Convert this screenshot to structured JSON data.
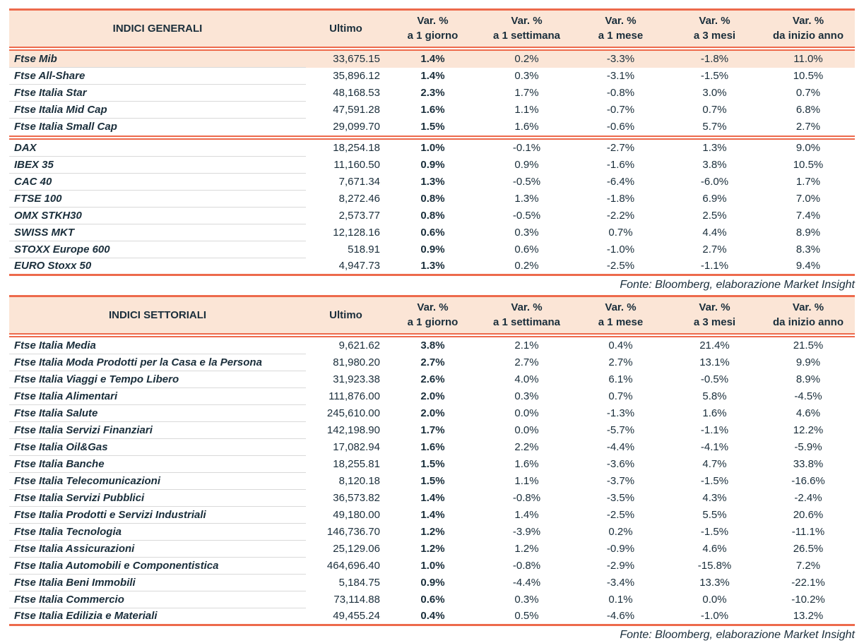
{
  "colors": {
    "accent_coral": "#ed6a4c",
    "header_peach": "#fbe5d6",
    "text_navy": "#1a2e3b",
    "row_separator": "#d9d9d9"
  },
  "header": {
    "ultimo": "Ultimo",
    "var_label": "Var. %",
    "periods": [
      "a 1 giorno",
      "a 1 settimana",
      "a 1 mese",
      "a 3 mesi",
      "da inizio anno"
    ]
  },
  "source_note": "Fonte: Bloomberg, elaborazione Market Insight",
  "chart_data": [
    {
      "type": "table",
      "title": "INDICI GENERALI",
      "columns": [
        "Ultimo",
        "Var. % a 1 giorno",
        "Var. % a 1 settimana",
        "Var. % a 1 mese",
        "Var. % a 3 mesi",
        "Var. % da inizio anno"
      ],
      "source": "Fonte: Bloomberg, elaborazione Market Insight",
      "groups": [
        {
          "rows": [
            {
              "name": "Ftse Mib",
              "highlight": true,
              "values": [
                "33,675.15",
                "1.4%",
                "0.2%",
                "-3.3%",
                "-1.8%",
                "11.0%"
              ]
            },
            {
              "name": "Ftse All-Share",
              "values": [
                "35,896.12",
                "1.4%",
                "0.3%",
                "-3.1%",
                "-1.5%",
                "10.5%"
              ]
            },
            {
              "name": "Ftse Italia Star",
              "values": [
                "48,168.53",
                "2.3%",
                "1.7%",
                "-0.8%",
                "3.0%",
                "0.7%"
              ]
            },
            {
              "name": "Ftse Italia Mid Cap",
              "values": [
                "47,591.28",
                "1.6%",
                "1.1%",
                "-0.7%",
                "0.7%",
                "6.8%"
              ]
            },
            {
              "name": "Ftse Italia Small Cap",
              "values": [
                "29,099.70",
                "1.5%",
                "1.6%",
                "-0.6%",
                "5.7%",
                "2.7%"
              ]
            }
          ]
        },
        {
          "rows": [
            {
              "name": "DAX",
              "values": [
                "18,254.18",
                "1.0%",
                "-0.1%",
                "-2.7%",
                "1.3%",
                "9.0%"
              ]
            },
            {
              "name": "IBEX 35",
              "values": [
                "11,160.50",
                "0.9%",
                "0.9%",
                "-1.6%",
                "3.8%",
                "10.5%"
              ]
            },
            {
              "name": "CAC 40",
              "values": [
                "7,671.34",
                "1.3%",
                "-0.5%",
                "-6.4%",
                "-6.0%",
                "1.7%"
              ]
            },
            {
              "name": "FTSE 100",
              "values": [
                "8,272.46",
                "0.8%",
                "1.3%",
                "-1.8%",
                "6.9%",
                "7.0%"
              ]
            },
            {
              "name": "OMX STKH30",
              "values": [
                "2,573.77",
                "0.8%",
                "-0.5%",
                "-2.2%",
                "2.5%",
                "7.4%"
              ]
            },
            {
              "name": "SWISS MKT",
              "values": [
                "12,128.16",
                "0.6%",
                "0.3%",
                "0.7%",
                "4.4%",
                "8.9%"
              ]
            },
            {
              "name": "STOXX Europe 600",
              "values": [
                "518.91",
                "0.9%",
                "0.6%",
                "-1.0%",
                "2.7%",
                "8.3%"
              ]
            },
            {
              "name": "EURO Stoxx 50",
              "values": [
                "4,947.73",
                "1.3%",
                "0.2%",
                "-2.5%",
                "-1.1%",
                "9.4%"
              ]
            }
          ]
        }
      ]
    },
    {
      "type": "table",
      "title": "INDICI SETTORIALI",
      "columns": [
        "Ultimo",
        "Var. % a 1 giorno",
        "Var. % a 1 settimana",
        "Var. % a 1 mese",
        "Var. % a 3 mesi",
        "Var. % da inizio anno"
      ],
      "source": "Fonte: Bloomberg, elaborazione Market Insight",
      "groups": [
        {
          "rows": [
            {
              "name": "Ftse Italia Media",
              "values": [
                "9,621.62",
                "3.8%",
                "2.1%",
                "0.4%",
                "21.4%",
                "21.5%"
              ]
            },
            {
              "name": "Ftse Italia Moda Prodotti per la Casa e la Persona",
              "values": [
                "81,980.20",
                "2.7%",
                "2.7%",
                "2.7%",
                "13.1%",
                "9.9%"
              ]
            },
            {
              "name": "Ftse Italia Viaggi e Tempo Libero",
              "values": [
                "31,923.38",
                "2.6%",
                "4.0%",
                "6.1%",
                "-0.5%",
                "8.9%"
              ]
            },
            {
              "name": "Ftse Italia Alimentari",
              "values": [
                "111,876.00",
                "2.0%",
                "0.3%",
                "0.7%",
                "5.8%",
                "-4.5%"
              ]
            },
            {
              "name": "Ftse Italia Salute",
              "values": [
                "245,610.00",
                "2.0%",
                "0.0%",
                "-1.3%",
                "1.6%",
                "4.6%"
              ]
            },
            {
              "name": "Ftse Italia Servizi Finanziari",
              "values": [
                "142,198.90",
                "1.7%",
                "0.0%",
                "-5.7%",
                "-1.1%",
                "12.2%"
              ]
            },
            {
              "name": "Ftse Italia Oil&Gas",
              "values": [
                "17,082.94",
                "1.6%",
                "2.2%",
                "-4.4%",
                "-4.1%",
                "-5.9%"
              ]
            },
            {
              "name": "Ftse Italia Banche",
              "values": [
                "18,255.81",
                "1.5%",
                "1.6%",
                "-3.6%",
                "4.7%",
                "33.8%"
              ]
            },
            {
              "name": "Ftse Italia Telecomunicazioni",
              "values": [
                "8,120.18",
                "1.5%",
                "1.1%",
                "-3.7%",
                "-1.5%",
                "-16.6%"
              ]
            },
            {
              "name": "Ftse Italia Servizi Pubblici",
              "values": [
                "36,573.82",
                "1.4%",
                "-0.8%",
                "-3.5%",
                "4.3%",
                "-2.4%"
              ]
            },
            {
              "name": "Ftse Italia Prodotti e Servizi Industriali",
              "values": [
                "49,180.00",
                "1.4%",
                "1.4%",
                "-2.5%",
                "5.5%",
                "20.6%"
              ]
            },
            {
              "name": "Ftse Italia Tecnologia",
              "values": [
                "146,736.70",
                "1.2%",
                "-3.9%",
                "0.2%",
                "-1.5%",
                "-11.1%"
              ]
            },
            {
              "name": "Ftse Italia Assicurazioni",
              "values": [
                "25,129.06",
                "1.2%",
                "1.2%",
                "-0.9%",
                "4.6%",
                "26.5%"
              ]
            },
            {
              "name": "Ftse Italia Automobili e Componentistica",
              "values": [
                "464,696.40",
                "1.0%",
                "-0.8%",
                "-2.9%",
                "-15.8%",
                "7.2%"
              ]
            },
            {
              "name": "Ftse Italia Beni Immobili",
              "values": [
                "5,184.75",
                "0.9%",
                "-4.4%",
                "-3.4%",
                "13.3%",
                "-22.1%"
              ]
            },
            {
              "name": "Ftse Italia Commercio",
              "values": [
                "73,114.88",
                "0.6%",
                "0.3%",
                "0.1%",
                "0.0%",
                "-10.2%"
              ]
            },
            {
              "name": "Ftse Italia Edilizia e Materiali",
              "values": [
                "49,455.24",
                "0.4%",
                "0.5%",
                "-4.6%",
                "-1.0%",
                "13.2%"
              ]
            }
          ]
        }
      ]
    }
  ]
}
